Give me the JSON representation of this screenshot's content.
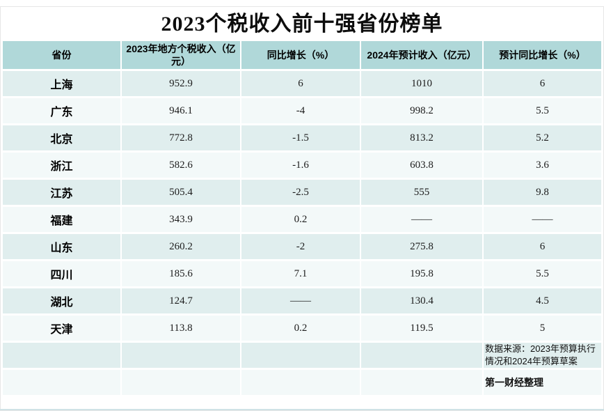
{
  "title": "2023个税收入前十强省份榜单",
  "chart_data": {
    "type": "table",
    "columns": [
      "省份",
      "2023年地方个税收入（亿元）",
      "同比增长（%）",
      "2024年预计收入（亿元）",
      "预计同比增长（%）"
    ],
    "rows": [
      [
        "上海",
        "952.9",
        "6",
        "1010",
        "6"
      ],
      [
        "广东",
        "946.1",
        "-4",
        "998.2",
        "5.5"
      ],
      [
        "北京",
        "772.8",
        "-1.5",
        "813.2",
        "5.2"
      ],
      [
        "浙江",
        "582.6",
        "-1.6",
        "603.8",
        "3.6"
      ],
      [
        "江苏",
        "505.4",
        "-2.5",
        "555",
        "9.8"
      ],
      [
        "福建",
        "343.9",
        "0.2",
        "——",
        "——"
      ],
      [
        "山东",
        "260.2",
        "-2",
        "275.8",
        "6"
      ],
      [
        "四川",
        "185.6",
        "7.1",
        "195.8",
        "5.5"
      ],
      [
        "湖北",
        "124.7",
        "——",
        "130.4",
        "4.5"
      ],
      [
        "天津",
        "113.8",
        "0.2",
        "119.5",
        "5"
      ]
    ],
    "notes": {
      "source": "数据来源：2023年预算执行情况和2024年预算草案",
      "credit": "第一财经整理"
    }
  },
  "colors": {
    "header_bg": "#b0d8d9",
    "row_tinted": "#e0eeee",
    "row_light": "#f3f9f9"
  }
}
